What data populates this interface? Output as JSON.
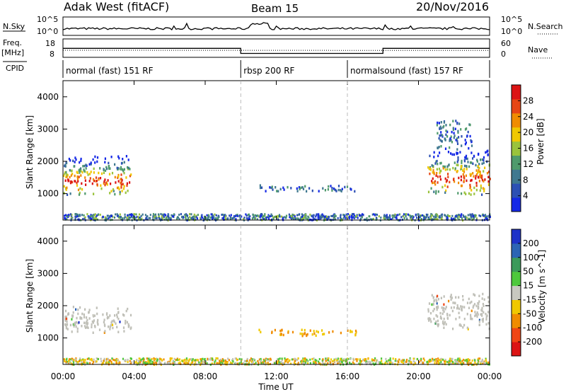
{
  "header": {
    "station": "Adak West (fitACF)",
    "beam": "Beam 15",
    "date": "20/Nov/2016"
  },
  "strip": {
    "nsky_label": "N.Sky",
    "nsearch_label": "N.Search",
    "freq_label": "Freq.",
    "freq_unit": "[MHz]",
    "nave_label": "Nave",
    "cpid_label": "CPID",
    "nsky_ticks": [
      "10^5",
      "10^0"
    ],
    "nsearch_ticks": [
      "10^5",
      "10^0"
    ],
    "freq_ticks": [
      "18",
      "8"
    ],
    "nave_ticks": [
      "60",
      "0"
    ]
  },
  "cpid_segments": [
    {
      "label": "normal (fast) 151 RF",
      "start_hour": 0
    },
    {
      "label": "rbsp 200 RF",
      "start_hour": 10
    },
    {
      "label": "normalsound (fast) 157 RF",
      "start_hour": 16
    }
  ],
  "colors": {
    "power_scale": [
      "#1428e6",
      "#2c50b4",
      "#3f7890",
      "#4f9a6c",
      "#9ac33c",
      "#f0c800",
      "#f08c00",
      "#e64614",
      "#dc1414"
    ],
    "velocity_scale": [
      "#dc1414",
      "#f04614",
      "#f08c00",
      "#f0c800",
      "#c8c8c0",
      "#4ec83c",
      "#3c9a5a",
      "#2c64b4",
      "#1e32c8"
    ],
    "ground_scatter": "#c0c0b8"
  },
  "chart_data": [
    {
      "type": "heatmap",
      "title": "Power",
      "xlabel": "Time UT",
      "ylabel": "Slant Range [km]",
      "xlim_hours": [
        0,
        24
      ],
      "ylim": [
        180,
        4500
      ],
      "x_ticks": [
        "00:00",
        "04:00",
        "08:00",
        "12:00",
        "16:00",
        "20:00",
        "00:00"
      ],
      "y_ticks": [
        1000,
        2000,
        3000,
        4000
      ],
      "colorbar_label": "Power [dB]",
      "colorbar_ticks": [
        "28",
        "24",
        "20",
        "16",
        "12",
        "8",
        "4"
      ],
      "regions": [
        {
          "hours": [
            0.0,
            3.8
          ],
          "range_km": [
            1000,
            2200
          ],
          "peak_db": 28
        },
        {
          "hours": [
            20.5,
            24.0
          ],
          "range_km": [
            1000,
            2400
          ],
          "peak_db": 28
        },
        {
          "hours": [
            21.0,
            23.0
          ],
          "range_km": [
            2400,
            3300
          ],
          "peak_db": 12
        },
        {
          "hours": [
            11.0,
            16.5
          ],
          "range_km": [
            1100,
            1300
          ],
          "peak_db": 8
        },
        {
          "hours": [
            0.0,
            24.0
          ],
          "range_km": [
            200,
            400
          ],
          "peak_db": 16
        }
      ]
    },
    {
      "type": "heatmap",
      "title": "Velocity",
      "xlabel": "Time UT",
      "ylabel": "Slant Range [km]",
      "xlim_hours": [
        0,
        24
      ],
      "ylim": [
        180,
        4500
      ],
      "x_ticks": [
        "00:00",
        "04:00",
        "08:00",
        "12:00",
        "16:00",
        "20:00",
        "00:00"
      ],
      "y_ticks": [
        1000,
        2000,
        3000,
        4000
      ],
      "colorbar_label": "Velocity [m s^-1]",
      "colorbar_ticks": [
        "200",
        "100",
        "50",
        "15",
        "-15",
        "-50",
        "-100",
        "-200"
      ],
      "regions": [
        {
          "hours": [
            0.0,
            3.8
          ],
          "range_km": [
            1200,
            2000
          ],
          "velocity": 0
        },
        {
          "hours": [
            20.5,
            24.0
          ],
          "range_km": [
            1300,
            2400
          ],
          "velocity": 0
        },
        {
          "hours": [
            11.0,
            16.5
          ],
          "range_km": [
            1100,
            1300
          ],
          "velocity": -50
        },
        {
          "hours": [
            0.0,
            24.0
          ],
          "range_km": [
            200,
            400
          ],
          "velocity": -15
        }
      ]
    }
  ]
}
